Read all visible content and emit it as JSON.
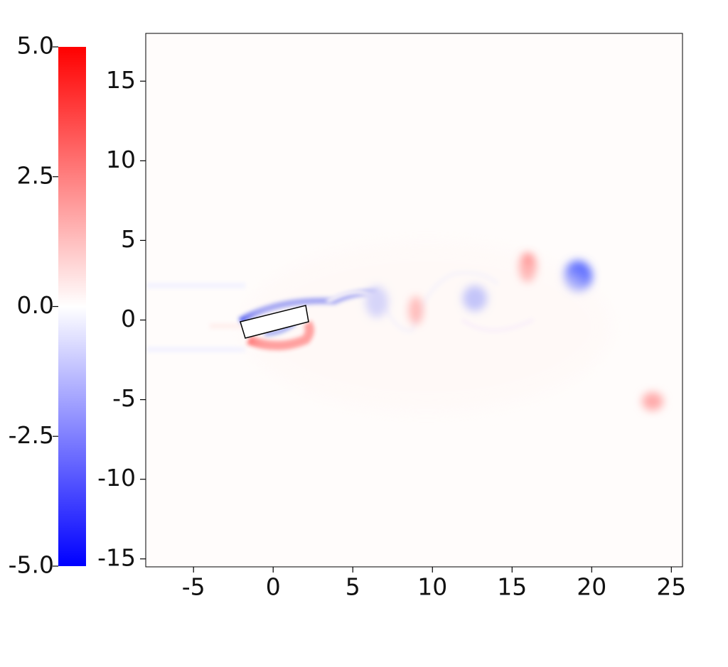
{
  "chart_data": {
    "type": "field",
    "xlim": [
      -8,
      25.7
    ],
    "ylim": [
      -15.5,
      18
    ],
    "xticks": [
      -5,
      0,
      5,
      10,
      15,
      20,
      25
    ],
    "yticks": [
      -15,
      -10,
      -5,
      0,
      5,
      10,
      15
    ],
    "colorbar": {
      "clim": [
        -5,
        5
      ],
      "colormap": [
        "#0000ff",
        "#ffffff",
        "#ff0000"
      ],
      "ticks": [
        {
          "value": -5,
          "label": "-5.0"
        },
        {
          "value": -2.5,
          "label": "-2.5"
        },
        {
          "value": 0,
          "label": "0.0"
        },
        {
          "value": 2.5,
          "label": "2.5"
        },
        {
          "value": 5,
          "label": "5.0"
        }
      ]
    }
  }
}
